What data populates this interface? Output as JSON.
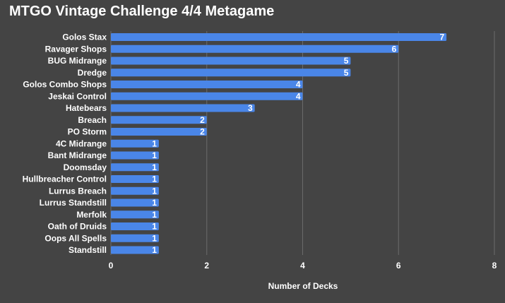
{
  "chart_data": {
    "type": "bar",
    "orientation": "horizontal",
    "title": "MTGO Vintage Challenge 4/4 Metagame",
    "xlabel": "Number of Decks",
    "ylabel": "",
    "xlim": [
      0,
      8
    ],
    "xticks": [
      0,
      2,
      4,
      6,
      8
    ],
    "grid": true,
    "bar_color": "#4a86e8",
    "background": "#444444",
    "gridline_color": "#6b6b6b",
    "categories": [
      "Golos Stax",
      "Ravager Shops",
      "BUG Midrange",
      "Dredge",
      "Golos Combo Shops",
      "Jeskai Control",
      "Hatebears",
      "Breach",
      "PO Storm",
      "4C Midrange",
      "Bant Midrange",
      "Doomsday",
      "Hullbreacher Control",
      "Lurrus Breach",
      "Lurrus Standstill",
      "Merfolk",
      "Oath of Druids",
      "Oops All Spells",
      "Standstill"
    ],
    "values": [
      7,
      6,
      5,
      5,
      4,
      4,
      3,
      2,
      2,
      1,
      1,
      1,
      1,
      1,
      1,
      1,
      1,
      1,
      1
    ]
  }
}
